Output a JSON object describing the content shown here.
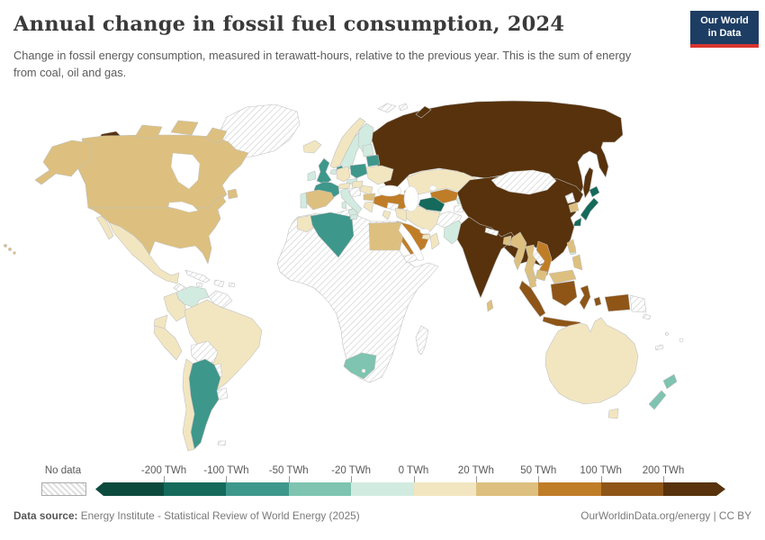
{
  "header": {
    "title": "Annual change in fossil fuel consumption, 2024",
    "subtitle": "Change in fossil energy consumption, measured in terawatt-hours, relative to the previous year. This is the sum of energy from coal, oil and gas.",
    "logo": {
      "line1": "Our World",
      "line2": "in Data",
      "bg_color": "#1d3d63",
      "accent_color": "#d8352e"
    }
  },
  "legend": {
    "no_data_label": "No data",
    "tick_labels": [
      "-200 TWh",
      "-100 TWh",
      "-50 TWh",
      "-20 TWh",
      "0 TWh",
      "20 TWh",
      "50 TWh",
      "100 TWh",
      "200 TWh"
    ],
    "colors": [
      "#0d4a3e",
      "#156a5c",
      "#3e978b",
      "#7ec4b0",
      "#d2ebe0",
      "#f2e6c1",
      "#ddc07f",
      "#c07d27",
      "#8e5517",
      "#57320c"
    ]
  },
  "map": {
    "country_fills": {
      "greenland": "nd",
      "canada": 6,
      "usa": 6,
      "hawaii": 6,
      "mexico": 5,
      "central_america": "nd",
      "cuba": "nd",
      "hispaniola": "nd",
      "jamaica": "nd",
      "puerto_rico": "nd",
      "venezuela": 4,
      "guyanas": "nd",
      "colombia": 5,
      "ecuador": 5,
      "peru": 5,
      "brazil": 5,
      "bolivia": "nd",
      "paraguay": "nd",
      "uruguay": "nd",
      "argentina": 2,
      "chile": 5,
      "falkland_islands": "nd",
      "iceland": 5,
      "norway": 5,
      "sweden": 4,
      "finland": 4,
      "baltic_states": 4,
      "denmark": 2,
      "united_kingdom": 2,
      "ireland": 4,
      "netherlands": 4,
      "germany": 5,
      "poland": 2,
      "belarus": 2,
      "ukraine": 5,
      "czechia": 4,
      "austria": 5,
      "hungary": 5,
      "romania": 5,
      "western_balkans": "nd",
      "bulgaria": 6,
      "greece": 5,
      "italy": 4,
      "sardinia": 4,
      "france": 2,
      "spain": 6,
      "portugal": 4,
      "morocco": 5,
      "algeria": 2,
      "tunisia": 4,
      "egypt": 6,
      "africa_other": "nd",
      "south_africa": 3,
      "madagascar": "nd",
      "turkey": 7,
      "caucasus": 6,
      "syria": "nd",
      "jordan_israel": 5,
      "iraq": 5,
      "iran": 5,
      "saudi_arabia": 7,
      "yemen": "nd",
      "oman": 5,
      "uae": 5,
      "russia": 9,
      "novaya_zemlya": 9,
      "sakhalin": 9,
      "svalbard": "nd",
      "kazakhstan": 5,
      "uzbekistan": 7,
      "turkmenistan": 1,
      "kyrgyzstan": 4,
      "tajikistan": "nd",
      "afghanistan": "nd",
      "pakistan": 4,
      "india": 9,
      "nepal": "nd",
      "bangladesh": 6,
      "sri_lanka": 6,
      "china": 9,
      "mongolia": "nd",
      "north_korea": "nd",
      "south_korea": 6,
      "japan": 1,
      "taiwan": 4,
      "myanmar": 6,
      "thailand": 6,
      "laos": "nd",
      "vietnam": 7,
      "cambodia": 6,
      "malaysia": 6,
      "indonesia": 8,
      "papua_new_guinea": "nd",
      "philippines": 6,
      "australia": 5,
      "tasmania": 5,
      "new_zealand": 3,
      "pacific_islands": "nd"
    }
  },
  "footer": {
    "source_label": "Data source:",
    "source_text": " Energy Institute - Statistical Review of World Energy (2025)",
    "right_text": "OurWorldinData.org/energy | CC BY"
  }
}
